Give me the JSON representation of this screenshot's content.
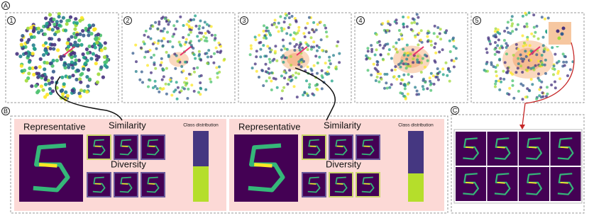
{
  "section_labels": {
    "a": "A",
    "b": "B",
    "c": "C"
  },
  "steps": [
    "1",
    "2",
    "3",
    "4",
    "5"
  ],
  "cards": [
    {
      "representative": "Representative",
      "similarity": "Similarity",
      "diversity": "Diversity",
      "class_distribution": "Class distribution"
    },
    {
      "representative": "Representative",
      "similarity": "Similarity",
      "diversity": "Diversity",
      "class_distribution": "Class distribution"
    }
  ]
}
